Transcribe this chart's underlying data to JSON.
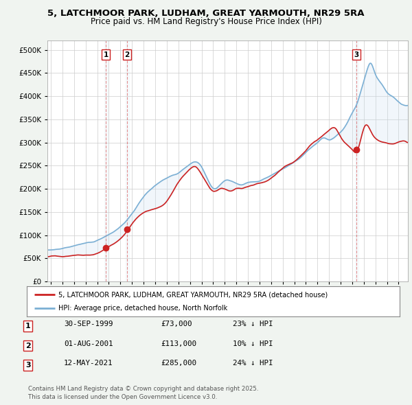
{
  "title_line1": "5, LATCHMOOR PARK, LUDHAM, GREAT YARMOUTH, NR29 5RA",
  "title_line2": "Price paid vs. HM Land Registry's House Price Index (HPI)",
  "background_color": "#f0f4f0",
  "plot_bg_color": "#ffffff",
  "sale_year_floats": [
    1999.75,
    2001.58,
    2021.37
  ],
  "sale_prices": [
    73000,
    113000,
    285000
  ],
  "sale_labels": [
    "1",
    "2",
    "3"
  ],
  "hpi_line_color": "#7bafd4",
  "price_line_color": "#cc2222",
  "fill_color": "#c8dff0",
  "legend_entry1": "5, LATCHMOOR PARK, LUDHAM, GREAT YARMOUTH, NR29 5RA (detached house)",
  "legend_entry2": "HPI: Average price, detached house, North Norfolk",
  "table_rows": [
    [
      "1",
      "30-SEP-1999",
      "£73,000",
      "23% ↓ HPI"
    ],
    [
      "2",
      "01-AUG-2001",
      "£113,000",
      "10% ↓ HPI"
    ],
    [
      "3",
      "12-MAY-2021",
      "£285,000",
      "24% ↓ HPI"
    ]
  ],
  "footnote": "Contains HM Land Registry data © Crown copyright and database right 2025.\nThis data is licensed under the Open Government Licence v3.0.",
  "ylim": [
    0,
    520000
  ],
  "yticks": [
    0,
    50000,
    100000,
    150000,
    200000,
    250000,
    300000,
    350000,
    400000,
    450000,
    500000
  ],
  "xlim_start": 1994.7,
  "xlim_end": 2025.8
}
